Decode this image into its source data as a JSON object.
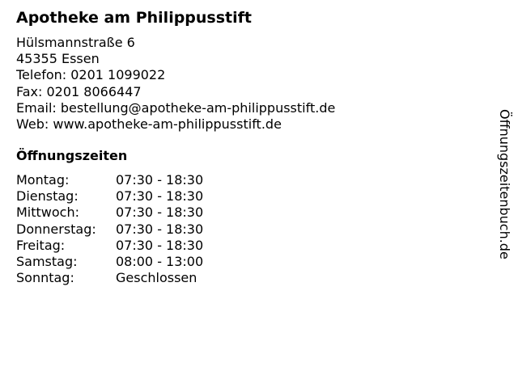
{
  "title": "Apotheke am Philippusstift",
  "address": {
    "street": "Hülsmannstraße 6",
    "city": "45355 Essen",
    "phone": "Telefon: 0201 1099022",
    "fax": "Fax: 0201 8066447",
    "email": "Email: bestellung@apotheke-am-philippusstift.de",
    "web": "Web: www.apotheke-am-philippusstift.de"
  },
  "hours_heading": "Öffnungszeiten",
  "hours": [
    {
      "day": "Montag:",
      "time": "07:30 - 18:30"
    },
    {
      "day": "Dienstag:",
      "time": "07:30 - 18:30"
    },
    {
      "day": "Mittwoch:",
      "time": "07:30 - 18:30"
    },
    {
      "day": "Donnerstag:",
      "time": "07:30 - 18:30"
    },
    {
      "day": "Freitag:",
      "time": "07:30 - 18:30"
    },
    {
      "day": "Samstag:",
      "time": "08:00 - 13:00"
    },
    {
      "day": "Sonntag:",
      "time": "Geschlossen"
    }
  ],
  "side_label": "Öffnungszeitenbuch.de"
}
